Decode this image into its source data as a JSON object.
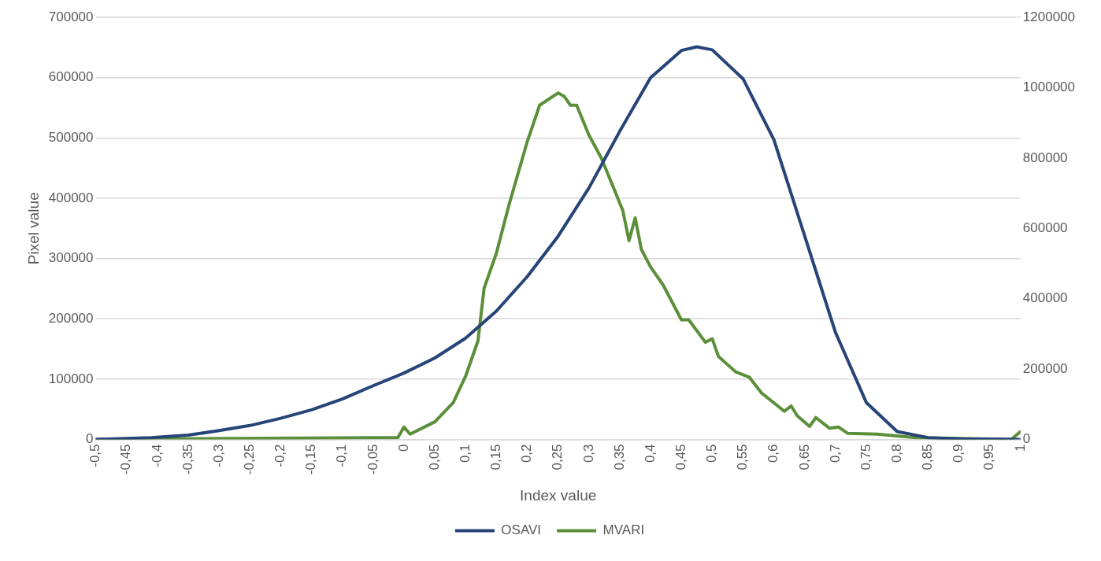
{
  "chart_data": {
    "type": "line",
    "xlabel": "Index value",
    "ylabel": "Pixel value",
    "legend": "bottom",
    "grid": "y",
    "marker": "none",
    "line_style": "solid",
    "xlim": [
      -0.5,
      1
    ],
    "xticks": [
      {
        "value": -0.5,
        "label": "-0,5"
      },
      {
        "value": -0.45,
        "label": "-0,45"
      },
      {
        "value": -0.4,
        "label": "-0,4"
      },
      {
        "value": -0.35,
        "label": "-0,35"
      },
      {
        "value": -0.3,
        "label": "-0,3"
      },
      {
        "value": -0.25,
        "label": "-0,25"
      },
      {
        "value": -0.2,
        "label": "-0,2"
      },
      {
        "value": -0.15,
        "label": "-0,15"
      },
      {
        "value": -0.1,
        "label": "-0,1"
      },
      {
        "value": -0.05,
        "label": "-0,05"
      },
      0,
      {
        "value": 0.05,
        "label": "0,05"
      },
      {
        "value": 0.1,
        "label": "0,1"
      },
      {
        "value": 0.15,
        "label": "0,15"
      },
      {
        "value": 0.2,
        "label": "0,2"
      },
      {
        "value": 0.25,
        "label": "0,25"
      },
      {
        "value": 0.3,
        "label": "0,3"
      },
      {
        "value": 0.35,
        "label": "0,35"
      },
      {
        "value": 0.4,
        "label": "0,4"
      },
      {
        "value": 0.45,
        "label": "0,45"
      },
      {
        "value": 0.5,
        "label": "0,5"
      },
      {
        "value": 0.55,
        "label": "0,55"
      },
      {
        "value": 0.6,
        "label": "0,6"
      },
      {
        "value": 0.65,
        "label": "0,65"
      },
      {
        "value": 0.7,
        "label": "0,7"
      },
      {
        "value": 0.75,
        "label": "0,75"
      },
      {
        "value": 0.8,
        "label": "0,8"
      },
      {
        "value": 0.85,
        "label": "0,85"
      },
      {
        "value": 0.9,
        "label": "0,9"
      },
      {
        "value": 0.95,
        "label": "0,95"
      },
      1
    ],
    "ylim": [
      0,
      700000
    ],
    "yticks": [
      0,
      100000,
      200000,
      300000,
      400000,
      500000,
      600000,
      700000
    ],
    "y2lim": [
      0,
      1200000
    ],
    "y2ticks": [
      0,
      200000,
      400000,
      600000,
      800000,
      1000000,
      1200000
    ],
    "series": [
      {
        "name": "OSAVI",
        "color": "#264478",
        "x": [
          -0.5,
          -0.41,
          -0.35,
          -0.3,
          -0.25,
          -0.2,
          -0.15,
          -0.1,
          -0.05,
          0,
          0.05,
          0.1,
          0.15,
          0.2,
          0.25,
          0.3,
          0.35,
          0.4,
          0.45,
          0.475,
          0.5,
          0.55,
          0.6,
          0.65,
          0.7,
          0.75,
          0.8,
          0.85,
          0.9,
          1
        ],
        "values": [
          0,
          3000,
          7000,
          14500,
          23000,
          35000,
          49000,
          67000,
          89000,
          110000,
          135000,
          168000,
          213000,
          270000,
          337000,
          417000,
          511000,
          600000,
          645000,
          651000,
          646000,
          598000,
          497000,
          337000,
          177000,
          61000,
          13000,
          3000,
          1000,
          0
        ]
      },
      {
        "name": "MVARI",
        "color": "#5b8f3a",
        "axis": "y2",
        "x": [
          -0.5,
          -0.05,
          -0.01,
          0,
          0.01,
          0.05,
          0.08,
          0.1,
          0.12,
          0.13,
          0.15,
          0.17,
          0.2,
          0.22,
          0.25,
          0.26,
          0.27,
          0.28,
          0.3,
          0.32,
          0.34,
          0.355,
          0.365,
          0.375,
          0.385,
          0.4,
          0.42,
          0.45,
          0.462,
          0.489,
          0.5,
          0.51,
          0.538,
          0.56,
          0.58,
          0.617,
          0.628,
          0.638,
          0.658,
          0.668,
          0.69,
          0.705,
          0.72,
          0.767,
          0.83,
          0.985,
          1
        ],
        "values": [
          0,
          5000,
          5000,
          35000,
          15000,
          50000,
          105000,
          180000,
          280000,
          430000,
          530000,
          665000,
          847000,
          950000,
          985000,
          975000,
          950000,
          950000,
          865000,
          800000,
          715000,
          650000,
          565000,
          630000,
          540000,
          490000,
          440000,
          340000,
          340000,
          276000,
          286000,
          236000,
          192000,
          177000,
          132000,
          80000,
          95000,
          67000,
          37000,
          62000,
          32000,
          35000,
          17000,
          15000,
          5000,
          0,
          22000
        ]
      }
    ]
  }
}
